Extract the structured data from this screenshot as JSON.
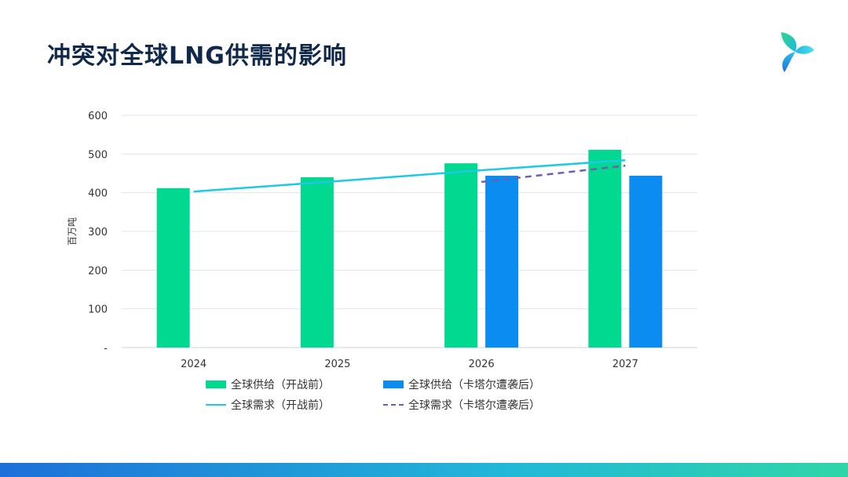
{
  "title": "冲突对全球LNG供需的影响",
  "chart_data": {
    "type": "bar",
    "categories": [
      "2024",
      "2025",
      "2026",
      "2027"
    ],
    "ylabel": "百万吨",
    "ylim": [
      0,
      600
    ],
    "yticks": [
      0,
      100,
      200,
      300,
      400,
      500,
      600
    ],
    "ytick_labels": [
      "-",
      "100",
      "200",
      "300",
      "400",
      "500",
      "600"
    ],
    "grid": true,
    "legend_position": "bottom",
    "series": [
      {
        "name": "全球供给（开战前）",
        "kind": "bar",
        "color": "#00d98f",
        "values": [
          412,
          440,
          476,
          511
        ]
      },
      {
        "name": "全球供给（卡塔尔遭袭后）",
        "kind": "bar",
        "color": "#0a8cf0",
        "values": [
          null,
          null,
          444,
          444
        ]
      },
      {
        "name": "全球需求（开战前）",
        "kind": "line",
        "color": "#1ec8e6",
        "values": [
          403,
          430,
          458,
          484
        ]
      },
      {
        "name": "全球需求（卡塔尔遭袭后）",
        "kind": "dashed-line",
        "color": "#6b5fb0",
        "values": [
          null,
          null,
          428,
          470
        ]
      }
    ]
  }
}
